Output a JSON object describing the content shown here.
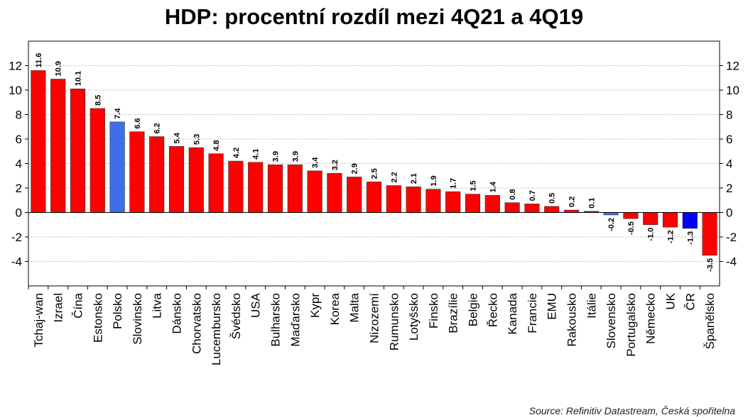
{
  "title": "HDP: procentní rozdíl mezi 4Q21 a 4Q19",
  "source": "Source: Refinitiv Datastream, Česká spořitelna",
  "chart_data": {
    "type": "bar",
    "title": "HDP: procentní rozdíl mezi 4Q21 a 4Q19",
    "xlabel": "",
    "ylabel": "",
    "ylim": [
      -6,
      14
    ],
    "y_ticks": [
      -4,
      -2,
      0,
      2,
      4,
      6,
      8,
      10,
      12
    ],
    "grid": true,
    "legend": "none",
    "categories": [
      "Tchaj-wan",
      "Izrael",
      "Čína",
      "Estonsko",
      "Polsko",
      "Slovinsko",
      "Litva",
      "Dánsko",
      "Chorvatsko",
      "Lucembursko",
      "Švédsko",
      "USA",
      "Bulharsko",
      "Maďarsko",
      "Kypr",
      "Korea",
      "Malta",
      "Nizozemí",
      "Rumunsko",
      "Lotyšsko",
      "Finsko",
      "Brazílie",
      "Belgie",
      "Řecko",
      "Kanada",
      "Francie",
      "EMU",
      "Rakousko",
      "Itálie",
      "Slovensko",
      "Portugalsko",
      "Německo",
      "UK",
      "ČR",
      "Španělsko"
    ],
    "values": [
      11.6,
      10.9,
      10.1,
      8.5,
      7.4,
      6.6,
      6.2,
      5.4,
      5.3,
      4.8,
      4.2,
      4.1,
      3.9,
      3.9,
      3.4,
      3.2,
      2.9,
      2.5,
      2.2,
      2.1,
      1.9,
      1.7,
      1.5,
      1.4,
      0.8,
      0.7,
      0.5,
      0.2,
      0.1,
      -0.2,
      -0.5,
      -1.0,
      -1.2,
      -1.3,
      -3.5
    ],
    "data_labels": [
      "11.6",
      "10.9",
      "10.1",
      "8.5",
      "7.4",
      "6.6",
      "6.2",
      "5.4",
      "5.3",
      "4.8",
      "4.2",
      "4.1",
      "3.9",
      "3.9",
      "3.4",
      "3.2",
      "2.9",
      "2.5",
      "2.2",
      "2.1",
      "1.9",
      "1.7",
      "1.5",
      "1.4",
      "0.8",
      "0.7",
      "0.5",
      "0.2",
      "0.1",
      "-0.2",
      "-0.5",
      "-1.0",
      "-1.2",
      "-1.3",
      "-3.5"
    ],
    "highlight": {
      "Polsko": "#3f6fe8",
      "Slovensko": "#3f6fe8",
      "ČR": "#0000ff"
    },
    "colors": {
      "default": "#ff0000",
      "highlight_light": "#3f6fe8",
      "highlight_dark": "#0000ff",
      "grid": "#999999"
    }
  }
}
